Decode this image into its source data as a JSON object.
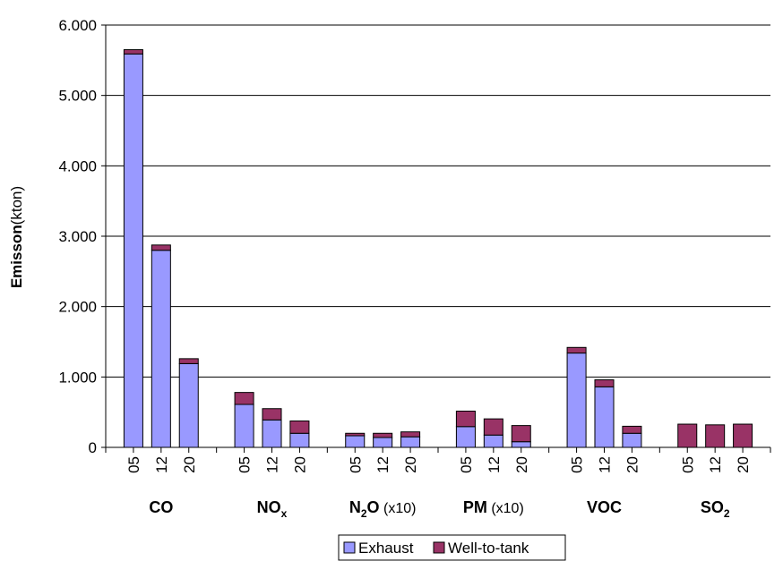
{
  "chart_data": {
    "type": "bar",
    "stacked": true,
    "ylabel": {
      "bold": "Emisson",
      "rest": "(kton)"
    },
    "ylim": [
      0,
      6000
    ],
    "yticks": [
      {
        "value": 0,
        "label": "0"
      },
      {
        "value": 1000,
        "label": "1.000"
      },
      {
        "value": 2000,
        "label": "2.000"
      },
      {
        "value": 3000,
        "label": "3.000"
      },
      {
        "value": 4000,
        "label": "4.000"
      },
      {
        "value": 5000,
        "label": "5.000"
      },
      {
        "value": 6000,
        "label": "6.000"
      }
    ],
    "grid": true,
    "legend_position": "bottom",
    "groups": [
      {
        "name": "CO",
        "sub": "",
        "note": "",
        "years": [
          "05",
          "12",
          "20"
        ],
        "exhaust": [
          5590,
          2800,
          1190
        ],
        "wtt": [
          60,
          75,
          70
        ]
      },
      {
        "name": "NO",
        "sub": "x",
        "note": "",
        "years": [
          "05",
          "12",
          "20"
        ],
        "exhaust": [
          610,
          390,
          200
        ],
        "wtt": [
          170,
          160,
          175
        ]
      },
      {
        "name": "N",
        "sub": "2",
        "name2": "O",
        "note": "(x10)",
        "years": [
          "05",
          "12",
          "20"
        ],
        "exhaust": [
          165,
          140,
          150
        ],
        "wtt": [
          35,
          60,
          70
        ]
      },
      {
        "name": "PM",
        "sub": "",
        "note": "(x10)",
        "years": [
          "05",
          "12",
          "20"
        ],
        "exhaust": [
          295,
          175,
          80
        ],
        "wtt": [
          220,
          230,
          230
        ]
      },
      {
        "name": "VOC",
        "sub": "",
        "note": "",
        "years": [
          "05",
          "12",
          "20"
        ],
        "exhaust": [
          1340,
          860,
          200
        ],
        "wtt": [
          80,
          100,
          100
        ]
      },
      {
        "name": "SO",
        "sub": "2",
        "note": "",
        "years": [
          "05",
          "12",
          "20"
        ],
        "exhaust": [
          0,
          0,
          0
        ],
        "wtt": [
          330,
          320,
          330
        ]
      }
    ],
    "series": [
      {
        "name": "Exhaust",
        "color": "#9999ff"
      },
      {
        "name": "Well-to-tank",
        "color": "#993366"
      }
    ]
  }
}
